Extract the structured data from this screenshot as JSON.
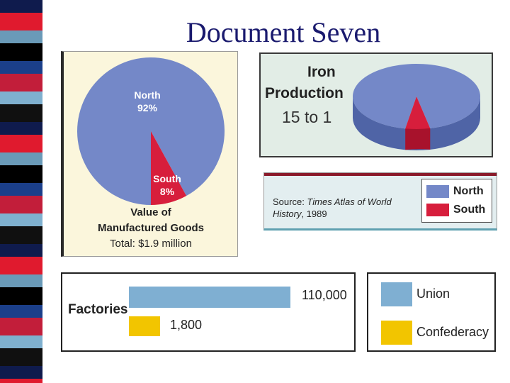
{
  "slide": {
    "title": "Document Seven"
  },
  "manufactured": {
    "north_label": "North",
    "north_pct": "92%",
    "south_label": "South",
    "south_pct": "8%",
    "caption_line1": "Value of",
    "caption_line2": "Manufactured Goods",
    "total": "Total: $1.9 million"
  },
  "iron": {
    "title_line1": "Iron",
    "title_line2": "Production",
    "ratio": "15 to 1"
  },
  "source": {
    "prefix": "Source: ",
    "title": "Times Atlas of World",
    "title2": "History",
    "year": ", 1989"
  },
  "legend_ns": {
    "north": "North",
    "south": "South"
  },
  "factories": {
    "label": "Factories",
    "union_value": "110,000",
    "confederacy_value": "1,800"
  },
  "legend_uc": {
    "union": "Union",
    "confederacy": "Confederacy"
  },
  "colors": {
    "north": "#7488c8",
    "south": "#d71e3c",
    "union": "#7fafd2",
    "confederacy": "#f2c500",
    "title": "#1a1a6e"
  },
  "chart_data": [
    {
      "type": "pie",
      "labels": [
        "North",
        "South"
      ],
      "values": [
        92,
        8
      ],
      "units": "%",
      "caption": "Value of Manufactured Goods",
      "total": "Total: $1.9 million"
    },
    {
      "type": "pie",
      "labels": [
        "North",
        "South"
      ],
      "values": [
        15,
        1
      ],
      "title": "Iron Production",
      "annotation": "15 to 1",
      "style": "3d"
    },
    {
      "type": "bar",
      "orientation": "horizontal",
      "categories": [
        "Factories"
      ],
      "series": [
        {
          "name": "Union",
          "values": [
            110000
          ]
        },
        {
          "name": "Confederacy",
          "values": [
            1800
          ]
        }
      ],
      "data_labels": [
        "110,000",
        "1,800"
      ]
    }
  ]
}
